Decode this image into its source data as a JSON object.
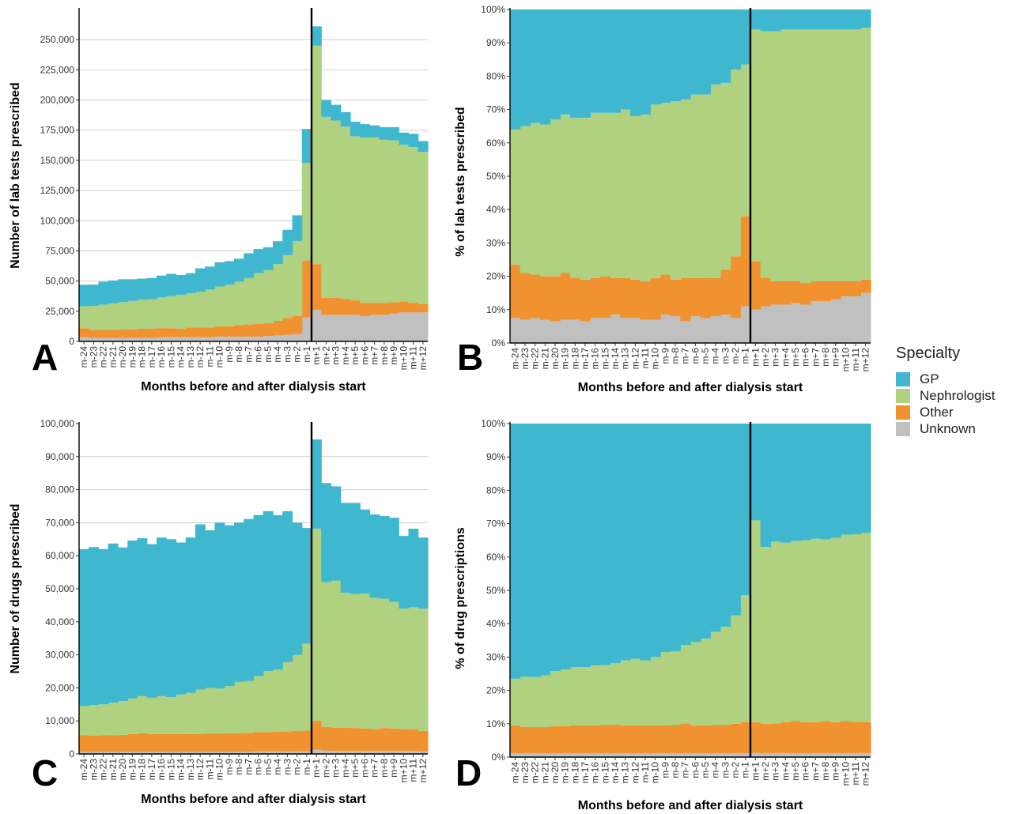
{
  "legend": {
    "title": "Specialty",
    "items": [
      {
        "label": "GP",
        "color": "#3fb7cf"
      },
      {
        "label": "Nephrologist",
        "color": "#b0d180"
      },
      {
        "label": "Other",
        "color": "#f0922f"
      },
      {
        "label": "Unknown",
        "color": "#c0c0c0"
      }
    ]
  },
  "chart_data": [
    {
      "panel": "A",
      "type": "area",
      "stacked": true,
      "xlabel": "Months before and after dialysis start",
      "ylabel": "Number of lab tests prescribed",
      "ylim": [
        0,
        275000
      ],
      "yticks": [
        "0",
        "25,000",
        "50,000",
        "75,000",
        "100,000",
        "125,000",
        "150,000",
        "175,000",
        "200,000",
        "225,000",
        "250,000"
      ],
      "grid": true,
      "vline_after": "m-1",
      "categories": [
        "m-24",
        "m-23",
        "m-22",
        "m-21",
        "m-20",
        "m-19",
        "m-18",
        "m-17",
        "m-16",
        "m-15",
        "m-14",
        "m-13",
        "m-12",
        "m-11",
        "m-10",
        "m-9",
        "m-8",
        "m-7",
        "m-6",
        "m-5",
        "m-4",
        "m-3",
        "m-2",
        "m-1",
        "m+1",
        "m+2",
        "m+3",
        "m+4",
        "m+5",
        "m+6",
        "m+7",
        "m+8",
        "m+9",
        "m+10",
        "m+11",
        "m+12"
      ],
      "series": [
        {
          "name": "Unknown",
          "values": [
            3500,
            3000,
            3000,
            3000,
            3000,
            3000,
            3000,
            3000,
            3500,
            3500,
            3500,
            3500,
            3500,
            3500,
            4000,
            4000,
            4000,
            4000,
            4000,
            4500,
            5000,
            5500,
            6000,
            20000,
            26000,
            22000,
            22000,
            22000,
            22000,
            21000,
            22000,
            22000,
            23000,
            24000,
            24000,
            24000
          ]
        },
        {
          "name": "Other",
          "values": [
            7500,
            6500,
            6500,
            6500,
            7000,
            7000,
            7500,
            7500,
            7500,
            7500,
            7000,
            8000,
            8000,
            8000,
            8500,
            8500,
            9500,
            10000,
            10500,
            10500,
            12000,
            14000,
            15000,
            47000,
            38000,
            14000,
            14000,
            13000,
            12000,
            11000,
            10000,
            10000,
            9500,
            9000,
            8000,
            7000
          ]
        },
        {
          "name": "Nephrologist",
          "values": [
            18000,
            20000,
            21000,
            22000,
            22500,
            23500,
            24000,
            24500,
            25500,
            26500,
            28000,
            28500,
            29500,
            31500,
            33000,
            34500,
            36000,
            38500,
            42000,
            44000,
            47000,
            52000,
            62000,
            81000,
            181000,
            150000,
            147000,
            143000,
            136000,
            137000,
            137000,
            135000,
            134000,
            130000,
            129000,
            126000
          ]
        },
        {
          "name": "GP",
          "values": [
            18000,
            17500,
            19000,
            19000,
            19000,
            18000,
            17500,
            17500,
            18000,
            18500,
            16500,
            16500,
            19500,
            19000,
            20000,
            19500,
            19000,
            20500,
            20000,
            19000,
            19000,
            21000,
            21500,
            28000,
            16000,
            14000,
            13000,
            12000,
            12000,
            11000,
            10000,
            10500,
            11000,
            10000,
            11000,
            9000
          ]
        }
      ]
    },
    {
      "panel": "B",
      "type": "area",
      "stacked": true,
      "xlabel": "Months before and after dialysis start",
      "ylabel": "% of lab tests prescribed",
      "ylim": [
        0,
        100
      ],
      "yticks": [
        "0%",
        "10%",
        "20%",
        "30%",
        "40%",
        "50%",
        "60%",
        "70%",
        "80%",
        "90%",
        "100%"
      ],
      "grid": false,
      "vline_after": "m-1",
      "categories": [
        "m-24",
        "m-23",
        "m-22",
        "m-21",
        "m-20",
        "m-19",
        "m-18",
        "m-17",
        "m-16",
        "m-15",
        "m-14",
        "m-13",
        "m-12",
        "m-11",
        "m-10",
        "m-9",
        "m-8",
        "m-7",
        "m-6",
        "m-5",
        "m-4",
        "m-3",
        "m-2",
        "m-1",
        "m+1",
        "m+2",
        "m+3",
        "m+4",
        "m+5",
        "m+6",
        "m+7",
        "m+8",
        "m+9",
        "m+10",
        "m+11",
        "m+12"
      ],
      "series": [
        {
          "name": "Unknown",
          "values": [
            7.5,
            7,
            7.5,
            7,
            6.5,
            7,
            7,
            6.5,
            7.5,
            7.5,
            8.5,
            7.5,
            7.5,
            7,
            7,
            8.5,
            8,
            6.5,
            8,
            7.5,
            8,
            8.5,
            7.5,
            11,
            10,
            11,
            11.5,
            11.5,
            12,
            11.5,
            12.5,
            12.5,
            13,
            14,
            14,
            15
          ]
        },
        {
          "name": "Other",
          "values": [
            16,
            14,
            13,
            13,
            13.5,
            14,
            12.5,
            12.5,
            12,
            12.5,
            11,
            12,
            11.5,
            11.5,
            12.5,
            12,
            11,
            13,
            11.5,
            12,
            11.5,
            13.5,
            18.5,
            27,
            14.5,
            8.5,
            7,
            7,
            6.5,
            6.5,
            6,
            6,
            5.5,
            4.5,
            4.5,
            4
          ]
        },
        {
          "name": "Nephrologist",
          "values": [
            40.5,
            44,
            45.5,
            45.5,
            47,
            47.5,
            48,
            48.5,
            49.5,
            49,
            49.5,
            50.5,
            49,
            50,
            52,
            51.5,
            53.5,
            53.5,
            55,
            55,
            58,
            56,
            56,
            45.5,
            69.5,
            74,
            75,
            75.5,
            75.5,
            76,
            75.5,
            75.5,
            75.5,
            75.5,
            75.5,
            75.5
          ]
        },
        {
          "name": "GP",
          "values": [
            36,
            35,
            34,
            34.5,
            33,
            31.5,
            32.5,
            32.5,
            31,
            31,
            31,
            30,
            32,
            31.5,
            28.5,
            28,
            27.5,
            27,
            25.5,
            25.5,
            22.5,
            22,
            18,
            16.5,
            6,
            6.5,
            6.5,
            6,
            6,
            6,
            6,
            6,
            6,
            6,
            6,
            5.5
          ]
        }
      ]
    },
    {
      "panel": "C",
      "type": "area",
      "stacked": true,
      "xlabel": "Months before and after dialysis start",
      "ylabel": "Number of drugs prescribed",
      "ylim": [
        0,
        100000
      ],
      "yticks": [
        "0",
        "10,000",
        "20,000",
        "30,000",
        "40,000",
        "50,000",
        "60,000",
        "70,000",
        "80,000",
        "90,000",
        "100,000"
      ],
      "grid": true,
      "vline_after": "m-1",
      "categories": [
        "m-24",
        "m-23",
        "m-22",
        "m-21",
        "m-20",
        "m-19",
        "m-18",
        "m-17",
        "m-16",
        "m-15",
        "m-14",
        "m-13",
        "m-12",
        "m-11",
        "m-10",
        "m-9",
        "m-8",
        "m-7",
        "m-6",
        "m-5",
        "m-4",
        "m-3",
        "m-2",
        "m-1",
        "m+1",
        "m+2",
        "m+3",
        "m+4",
        "m+5",
        "m+6",
        "m+7",
        "m+8",
        "m+9",
        "m+10",
        "m+11",
        "m+12"
      ],
      "series": [
        {
          "name": "Unknown",
          "values": [
            700,
            700,
            700,
            700,
            700,
            700,
            700,
            700,
            700,
            700,
            700,
            700,
            700,
            700,
            700,
            700,
            700,
            700,
            800,
            800,
            800,
            800,
            800,
            800,
            1300,
            1000,
            900,
            900,
            900,
            900,
            900,
            900,
            900,
            900,
            900,
            800
          ]
        },
        {
          "name": "Other",
          "values": [
            5000,
            4800,
            5000,
            5000,
            5100,
            5300,
            5600,
            5300,
            5300,
            5300,
            5300,
            5300,
            5300,
            5400,
            5500,
            5600,
            5600,
            5700,
            5800,
            5800,
            5900,
            6000,
            6200,
            6300,
            8700,
            7200,
            7000,
            7000,
            6900,
            6800,
            6600,
            6900,
            6800,
            6600,
            6500,
            6200
          ]
        },
        {
          "name": "Nephrologist",
          "values": [
            8800,
            9300,
            9300,
            9800,
            10200,
            10800,
            11200,
            11000,
            11500,
            11200,
            12000,
            12500,
            13500,
            13900,
            13600,
            14200,
            15500,
            15700,
            17000,
            18500,
            18800,
            21000,
            23000,
            26300,
            58200,
            43800,
            44600,
            40900,
            40600,
            40800,
            39700,
            39200,
            38300,
            36500,
            37000,
            37000
          ]
        },
        {
          "name": "GP",
          "values": [
            47500,
            47800,
            47000,
            48200,
            46500,
            47800,
            47800,
            46500,
            48000,
            47800,
            46000,
            47000,
            50000,
            47700,
            50200,
            48700,
            48200,
            49000,
            48700,
            48400,
            46800,
            45700,
            40000,
            35000,
            27000,
            30000,
            28500,
            27200,
            27600,
            25500,
            25300,
            25000,
            25500,
            22000,
            23800,
            21500
          ]
        }
      ]
    },
    {
      "panel": "D",
      "type": "area",
      "stacked": true,
      "xlabel": "Months before and after dialysis start",
      "ylabel": "% of drug prescriptions",
      "ylim": [
        0,
        100
      ],
      "yticks": [
        "0%",
        "10%",
        "20%",
        "30%",
        "40%",
        "50%",
        "60%",
        "70%",
        "80%",
        "90%",
        "100%"
      ],
      "grid": false,
      "vline_after": "m-1",
      "categories": [
        "m-24",
        "m-23",
        "m-22",
        "m-21",
        "m-20",
        "m-19",
        "m-18",
        "m-17",
        "m-16",
        "m-15",
        "m-14",
        "m-13",
        "m-12",
        "m-11",
        "m-10",
        "m-9",
        "m-8",
        "m-7",
        "m-6",
        "m-5",
        "m-4",
        "m-3",
        "m-2",
        "m-1",
        "m+1",
        "m+2",
        "m+3",
        "m+4",
        "m+5",
        "m+6",
        "m+7",
        "m+8",
        "m+9",
        "m+10",
        "m+11",
        "m+12"
      ],
      "series": [
        {
          "name": "Unknown",
          "values": [
            1.2,
            1.1,
            1.1,
            1.1,
            1.1,
            1.1,
            1.1,
            1.1,
            1.1,
            1.1,
            1.1,
            1.1,
            1.1,
            1.1,
            1.1,
            1.1,
            1.2,
            1.1,
            1.1,
            1.1,
            1.1,
            1.1,
            1.2,
            1.2,
            1.3,
            1.2,
            1.2,
            1.2,
            1.2,
            1.2,
            1.2,
            1.2,
            1.2,
            1.2,
            1.2,
            1.2
          ]
        },
        {
          "name": "Other",
          "values": [
            8.3,
            8,
            7.9,
            7.9,
            8.2,
            8.2,
            8.4,
            8.4,
            8.4,
            8.5,
            8.6,
            8.4,
            8.4,
            8.4,
            8.4,
            8.4,
            8.5,
            9,
            8.4,
            8.4,
            8.5,
            8.5,
            8.8,
            9.3,
            9.2,
            8.8,
            8.9,
            9.3,
            9.6,
            9.3,
            9.3,
            9.6,
            9.3,
            9.6,
            9.4,
            9.3
          ]
        },
        {
          "name": "Nephrologist",
          "values": [
            14,
            15,
            15,
            15.5,
            16.5,
            17,
            17.5,
            17.5,
            18,
            18,
            18.5,
            19.5,
            20,
            19.5,
            20.5,
            22,
            22,
            23.5,
            25,
            26,
            28,
            29.5,
            32.5,
            38,
            60.5,
            53,
            54.5,
            53.8,
            54,
            54.5,
            55,
            54.5,
            55.2,
            55.9,
            56.2,
            56.8
          ]
        },
        {
          "name": "GP",
          "values": [
            76.5,
            75.9,
            76,
            75.5,
            74.2,
            73.7,
            73,
            73,
            72.5,
            72.4,
            71.8,
            71,
            70.5,
            71,
            70,
            68.5,
            68.3,
            66.4,
            65.5,
            64.5,
            62.4,
            60.9,
            57.5,
            51.5,
            29,
            37,
            35.4,
            35.7,
            35.2,
            35,
            34.5,
            34.7,
            34.3,
            33.3,
            33.2,
            32.7
          ]
        }
      ]
    }
  ]
}
